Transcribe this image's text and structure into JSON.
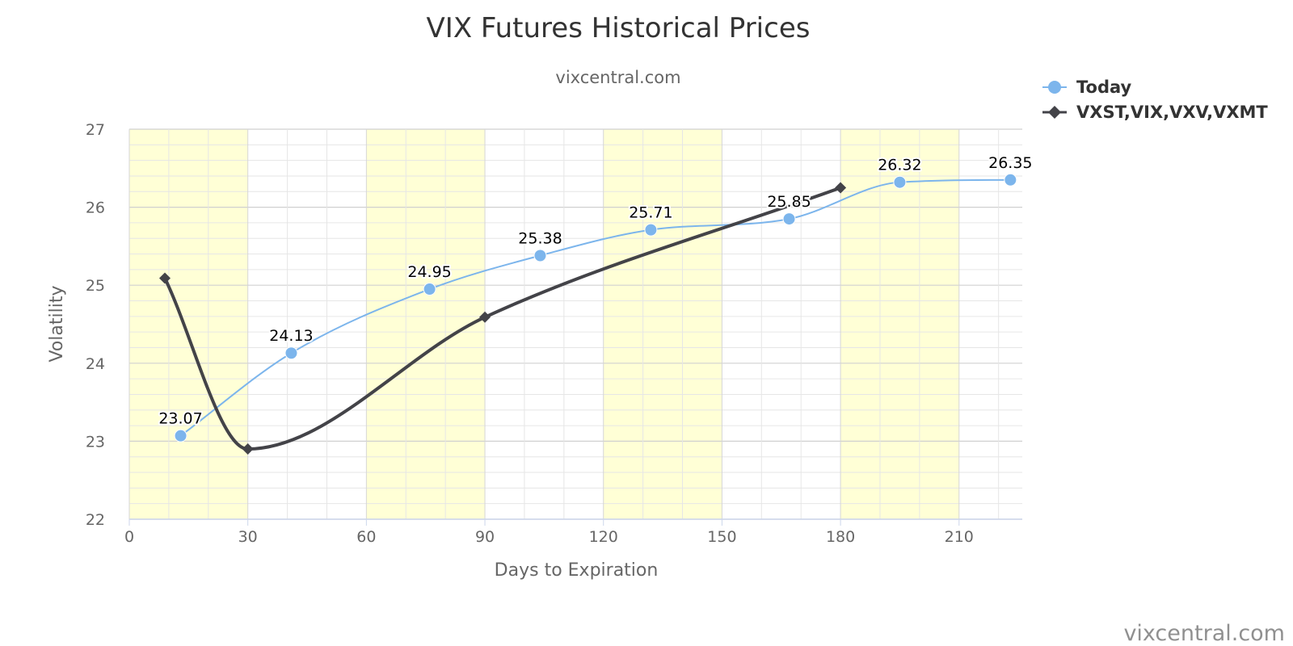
{
  "chart_data": {
    "type": "line",
    "title": "VIX Futures Historical Prices",
    "subtitle": "vixcentral.com",
    "xlabel": "Days to Expiration",
    "ylabel": "Volatility",
    "xlim": [
      0,
      226
    ],
    "ylim": [
      22,
      27
    ],
    "x_ticks": [
      0,
      30,
      60,
      90,
      120,
      150,
      180,
      210
    ],
    "y_ticks": [
      22,
      23,
      24,
      25,
      26,
      27
    ],
    "y_minor_step": 0.2,
    "x_minor_step": 10,
    "grid": true,
    "background_bands": [
      [
        0,
        30
      ],
      [
        60,
        90
      ],
      [
        120,
        150
      ],
      [
        180,
        210
      ]
    ],
    "band_color": "#ffffd6",
    "legend_position": "top-right",
    "series": [
      {
        "name": "Today",
        "color": "#7cb5ec",
        "marker": "circle",
        "data_labels": true,
        "points": [
          {
            "x": 13,
            "y": 23.07
          },
          {
            "x": 41,
            "y": 24.13
          },
          {
            "x": 76,
            "y": 24.95
          },
          {
            "x": 104,
            "y": 25.38
          },
          {
            "x": 132,
            "y": 25.71
          },
          {
            "x": 167,
            "y": 25.85
          },
          {
            "x": 195,
            "y": 26.32
          },
          {
            "x": 223,
            "y": 26.35
          }
        ]
      },
      {
        "name": "VXST,VIX,VXV,VXMT",
        "color": "#434348",
        "marker": "diamond",
        "data_labels": false,
        "points": [
          {
            "x": 9,
            "y": 25.09
          },
          {
            "x": 30,
            "y": 22.9
          },
          {
            "x": 90,
            "y": 24.59
          },
          {
            "x": 180,
            "y": 26.25
          }
        ]
      }
    ],
    "credit": "vixcentral.com"
  }
}
